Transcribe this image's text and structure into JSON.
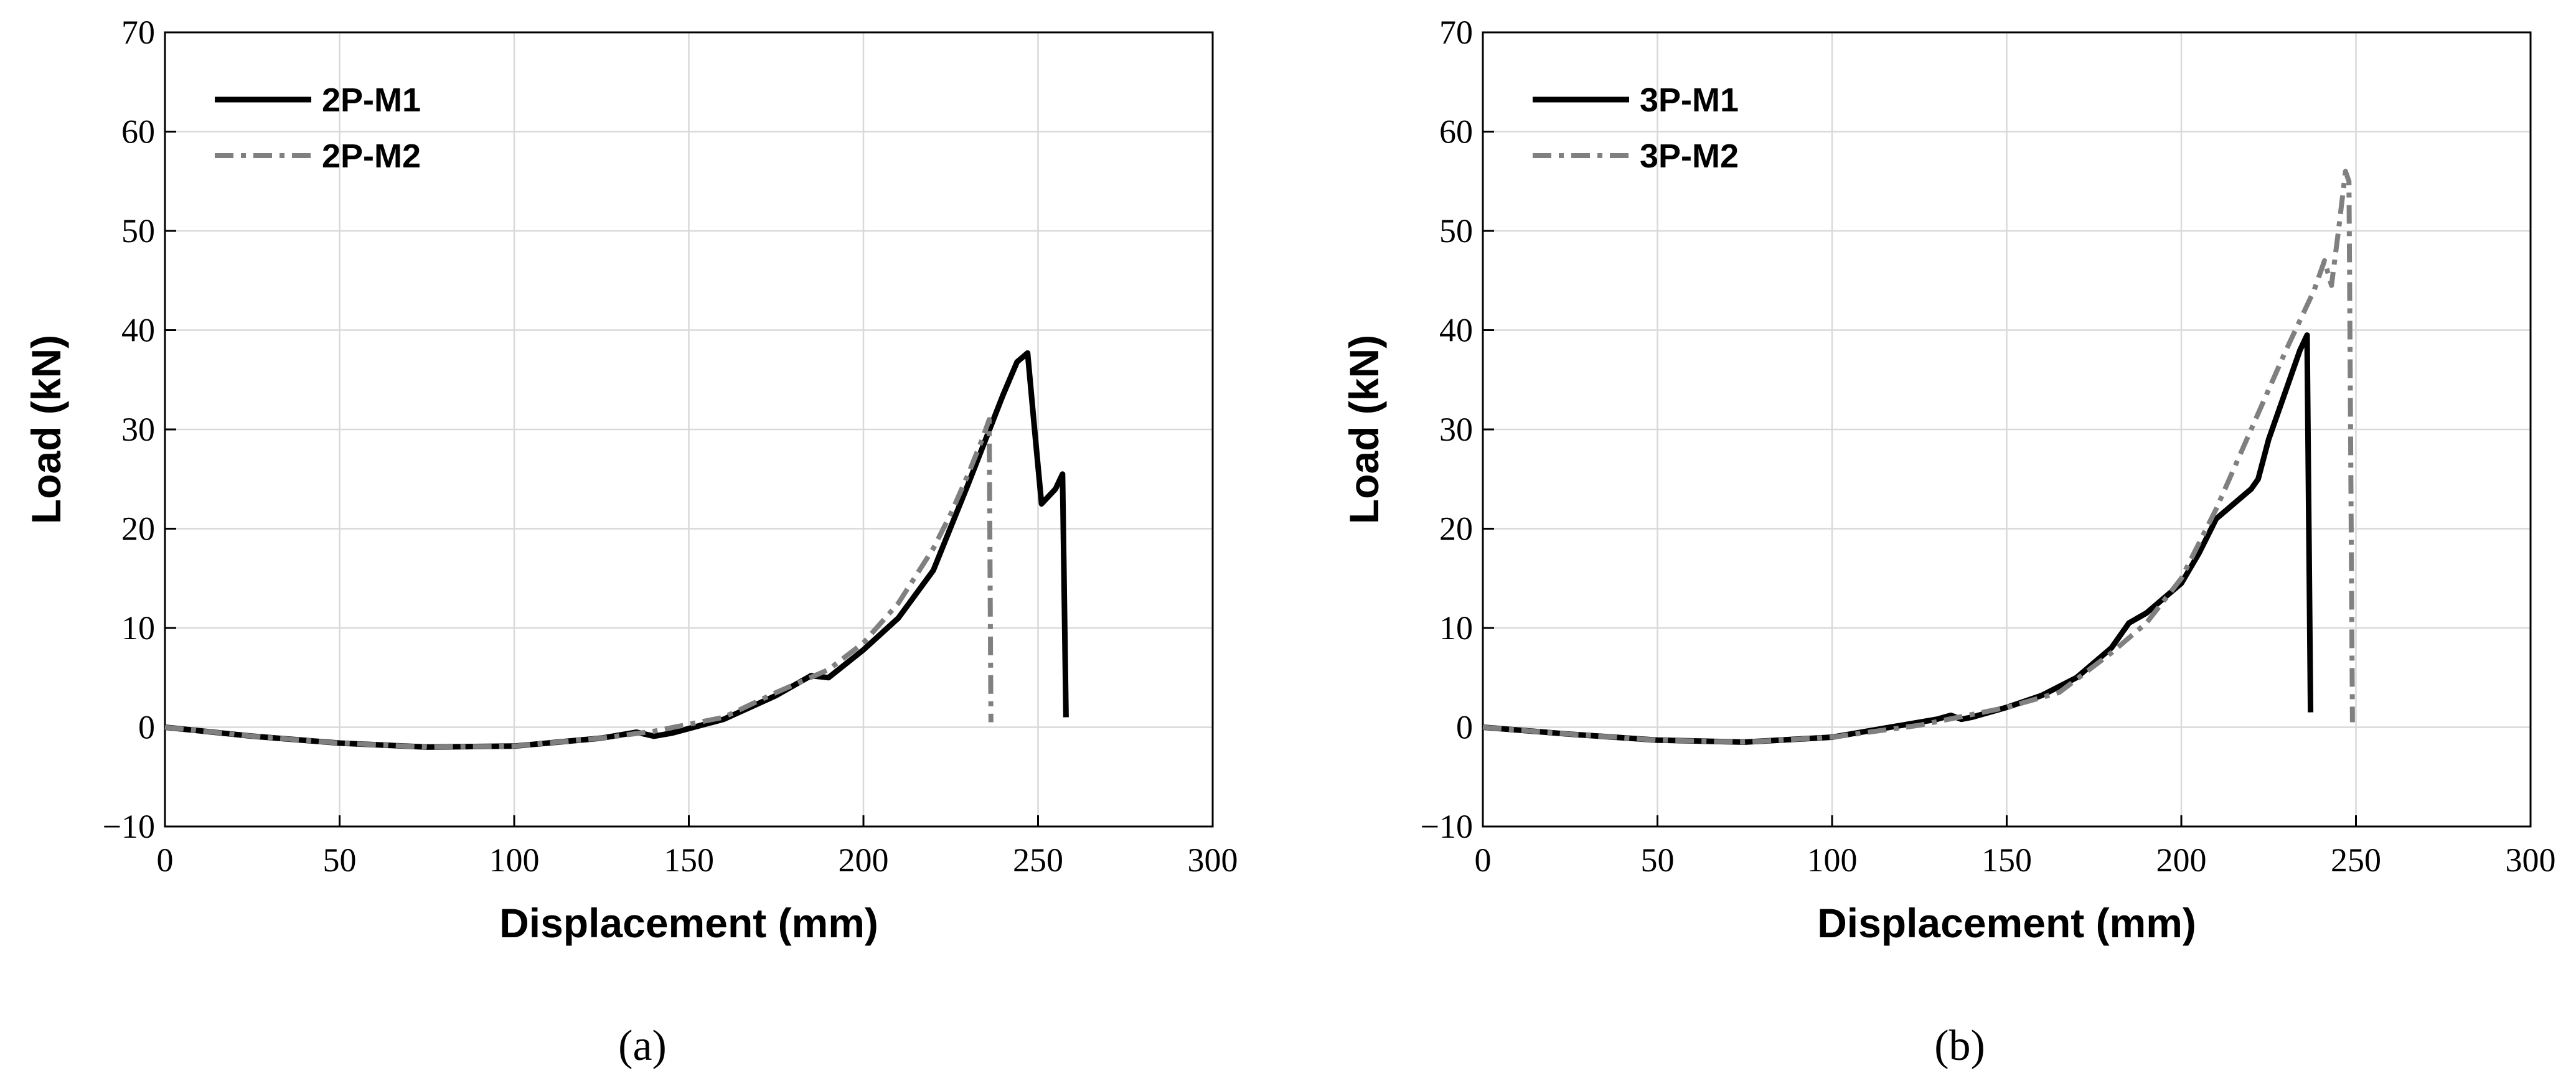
{
  "chart_data": [
    {
      "type": "line",
      "caption": "(a)",
      "xlabel": "Displacement (mm)",
      "ylabel": "Load (kN)",
      "xlim": [
        0,
        300
      ],
      "ylim": [
        -10,
        70
      ],
      "xticks": [
        "0",
        "50",
        "100",
        "150",
        "200",
        "250",
        "300"
      ],
      "yticks": [
        "−10",
        "0",
        "10",
        "20",
        "30",
        "40",
        "50",
        "60",
        "70"
      ],
      "grid": true,
      "legend_position": "top-left",
      "series": [
        {
          "name": "2P-M1",
          "color": "#000000",
          "style": "solid",
          "x": [
            0,
            25,
            50,
            75,
            100,
            125,
            135,
            140,
            145,
            160,
            175,
            185,
            190,
            200,
            210,
            220,
            230,
            240,
            244,
            247,
            249,
            251,
            255,
            257,
            258
          ],
          "y": [
            0,
            -0.9,
            -1.6,
            -2.0,
            -1.9,
            -1.1,
            -0.5,
            -0.9,
            -0.6,
            0.8,
            3.2,
            5.2,
            5.0,
            7.8,
            11.0,
            15.8,
            24.5,
            33.5,
            36.8,
            37.7,
            30.0,
            22.5,
            24.0,
            25.5,
            1.0
          ]
        },
        {
          "name": "2P-M2",
          "color": "#808080",
          "style": "dashdot",
          "x": [
            0,
            25,
            50,
            75,
            100,
            125,
            140,
            160,
            175,
            190,
            200,
            210,
            220,
            225,
            230,
            234,
            236,
            236.5
          ],
          "y": [
            0,
            -0.9,
            -1.6,
            -2.0,
            -1.9,
            -1.1,
            -0.4,
            1.0,
            3.5,
            5.8,
            8.5,
            12.5,
            18.0,
            21.5,
            25.5,
            29.0,
            31.0,
            0.5
          ]
        }
      ]
    },
    {
      "type": "line",
      "caption": "(b)",
      "xlabel": "Displacement (mm)",
      "ylabel": "Load (kN)",
      "xlim": [
        0,
        300
      ],
      "ylim": [
        -10,
        70
      ],
      "xticks": [
        "0",
        "50",
        "100",
        "150",
        "200",
        "250",
        "300"
      ],
      "yticks": [
        "−10",
        "0",
        "10",
        "20",
        "30",
        "40",
        "50",
        "60",
        "70"
      ],
      "grid": true,
      "legend_position": "top-left",
      "series": [
        {
          "name": "3P-M1",
          "color": "#000000",
          "style": "solid",
          "x": [
            0,
            25,
            50,
            75,
            100,
            120,
            130,
            134,
            137,
            140,
            150,
            160,
            170,
            180,
            185,
            190,
            195,
            200,
            205,
            210,
            215,
            220,
            222,
            225,
            230,
            234,
            236,
            237
          ],
          "y": [
            0,
            -0.7,
            -1.3,
            -1.5,
            -1.0,
            0.2,
            0.8,
            1.2,
            0.8,
            1.0,
            2.0,
            3.2,
            5.0,
            8.0,
            10.5,
            11.5,
            13.0,
            14.5,
            17.5,
            21.0,
            22.5,
            24.0,
            25.0,
            29.0,
            34.0,
            38.0,
            39.5,
            1.5
          ]
        },
        {
          "name": "3P-M2",
          "color": "#808080",
          "style": "dashdot",
          "x": [
            0,
            25,
            50,
            75,
            100,
            125,
            150,
            165,
            180,
            190,
            200,
            210,
            220,
            230,
            238,
            241,
            243,
            245,
            247,
            248,
            249
          ],
          "y": [
            0,
            -0.7,
            -1.3,
            -1.5,
            -1.0,
            0.2,
            2.0,
            3.5,
            7.5,
            10.5,
            15.0,
            22.0,
            30.0,
            38.0,
            44.0,
            47.0,
            44.5,
            50.0,
            56.0,
            55.0,
            0.5
          ]
        }
      ]
    }
  ]
}
